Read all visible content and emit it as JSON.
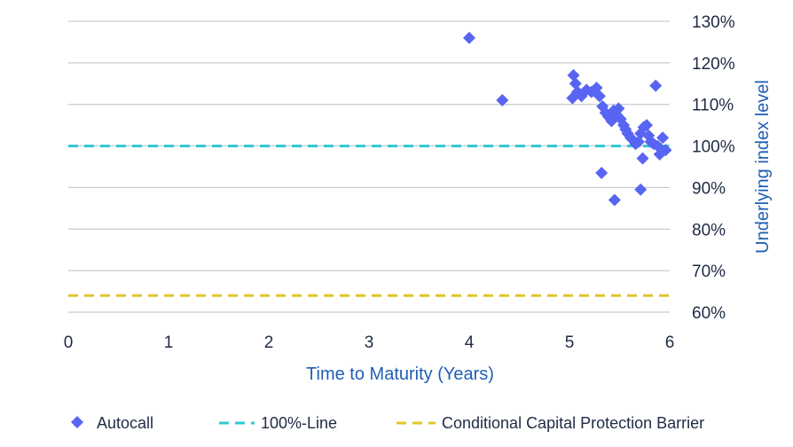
{
  "chart_data": {
    "type": "scatter",
    "xlabel": "Time to Maturity (Years)",
    "ylabel": "Underlying index level",
    "xlim": [
      0,
      6
    ],
    "ylim": [
      60,
      130
    ],
    "x_ticks": [
      "0",
      "1",
      "2",
      "3",
      "4",
      "5",
      "6"
    ],
    "y_ticks": [
      "60%",
      "70%",
      "80%",
      "90%",
      "100%",
      "110%",
      "120%",
      "130%"
    ],
    "grid": "horizontal",
    "legend_position": "bottom",
    "series": [
      {
        "name": "Autocall",
        "marker": "diamond",
        "color": "#5865f2",
        "points": [
          [
            4.0,
            126
          ],
          [
            4.33,
            111
          ],
          [
            5.04,
            117
          ],
          [
            5.06,
            115
          ],
          [
            5.03,
            111.5
          ],
          [
            5.08,
            113
          ],
          [
            5.12,
            112
          ],
          [
            5.17,
            113.5
          ],
          [
            5.22,
            113
          ],
          [
            5.27,
            114
          ],
          [
            5.3,
            112
          ],
          [
            5.33,
            109.5
          ],
          [
            5.36,
            108
          ],
          [
            5.39,
            107
          ],
          [
            5.42,
            106
          ],
          [
            5.44,
            108.5
          ],
          [
            5.47,
            107.5
          ],
          [
            5.49,
            109
          ],
          [
            5.51,
            106.5
          ],
          [
            5.54,
            105
          ],
          [
            5.56,
            104
          ],
          [
            5.58,
            103
          ],
          [
            5.61,
            102
          ],
          [
            5.63,
            101.5
          ],
          [
            5.66,
            100.5
          ],
          [
            5.69,
            101
          ],
          [
            5.71,
            103
          ],
          [
            5.74,
            104.5
          ],
          [
            5.77,
            105
          ],
          [
            5.79,
            102.5
          ],
          [
            5.81,
            101
          ],
          [
            5.84,
            100.5
          ],
          [
            5.86,
            114.5
          ],
          [
            5.88,
            100
          ],
          [
            5.9,
            98
          ],
          [
            5.93,
            102
          ],
          [
            5.96,
            99
          ],
          [
            5.32,
            93.5
          ],
          [
            5.45,
            87
          ],
          [
            5.71,
            89.5
          ],
          [
            5.73,
            97
          ]
        ]
      },
      {
        "name": "100%-Line",
        "line_style": "dashed",
        "color": "#2ec7d4",
        "y": 100
      },
      {
        "name": "Conditional Capital Protection Barrier",
        "line_style": "dashed",
        "color": "#e2c52a",
        "y": 64
      }
    ]
  }
}
